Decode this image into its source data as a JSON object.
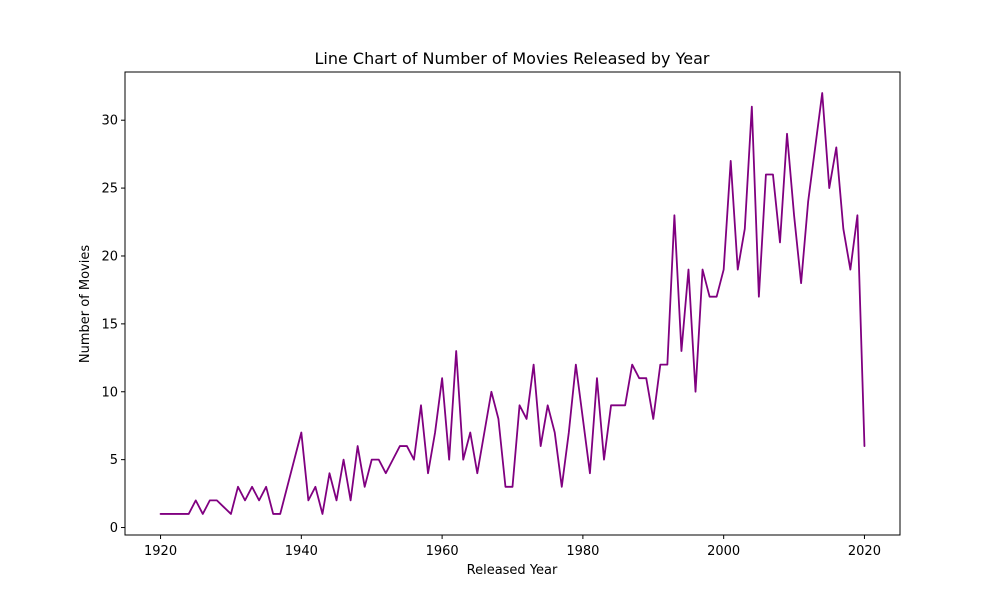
{
  "chart_data": {
    "type": "line",
    "title": "Line Chart of Number of Movies Released by Year",
    "xlabel": "Released Year",
    "ylabel": "Number of Movies",
    "xlim": [
      1914.95,
      2025.05
    ],
    "ylim": [
      -0.55,
      33.55
    ],
    "xticks": [
      1920,
      1940,
      1960,
      1980,
      2000,
      2020
    ],
    "yticks": [
      0,
      5,
      10,
      15,
      20,
      25,
      30
    ],
    "grid": false,
    "line_color": "#800080",
    "series": [
      {
        "x": [
          1920,
          1921,
          1922,
          1923,
          1924,
          1925,
          1926,
          1927,
          1928,
          1929,
          1930,
          1931,
          1932,
          1933,
          1934,
          1935,
          1936,
          1937,
          1940,
          1941,
          1942,
          1943,
          1944,
          1945,
          1946,
          1947,
          1948,
          1949,
          1950,
          1951,
          1952,
          1953,
          1954,
          1955,
          1956,
          1957,
          1958,
          1959,
          1960,
          1961,
          1962,
          1963,
          1964,
          1965,
          1966,
          1967,
          1968,
          1969,
          1970,
          1971,
          1972,
          1973,
          1974,
          1975,
          1976,
          1977,
          1978,
          1979,
          1980,
          1981,
          1982,
          1983,
          1984,
          1985,
          1986,
          1987,
          1988,
          1989,
          1990,
          1991,
          1992,
          1993,
          1994,
          1995,
          1996,
          1997,
          1998,
          1999,
          2000,
          2001,
          2002,
          2003,
          2004,
          2005,
          2006,
          2007,
          2008,
          2009,
          2010,
          2011,
          2012,
          2013,
          2014,
          2015,
          2016,
          2017,
          2018,
          2019,
          2020
        ],
        "values": [
          1,
          1,
          1,
          1,
          1,
          2,
          1,
          2,
          2,
          1.5,
          1,
          3,
          2,
          3,
          2,
          3,
          1,
          1,
          7,
          2,
          3,
          1,
          4,
          2,
          5,
          2,
          6,
          3,
          5,
          5,
          4,
          5,
          6,
          6,
          5,
          9,
          4,
          7,
          11,
          5,
          13,
          5,
          7,
          4,
          7,
          10,
          8,
          3,
          3,
          9,
          8,
          12,
          6,
          9,
          7,
          3,
          7,
          12,
          8,
          4,
          11,
          5,
          9,
          9,
          9,
          12,
          11,
          11,
          8,
          12,
          12,
          23,
          13,
          19,
          10,
          19,
          17,
          17,
          19,
          27,
          19,
          22,
          31,
          17,
          26,
          26,
          21,
          29,
          23,
          18,
          24,
          28,
          32,
          25,
          28,
          22,
          19,
          23,
          6
        ]
      }
    ]
  }
}
